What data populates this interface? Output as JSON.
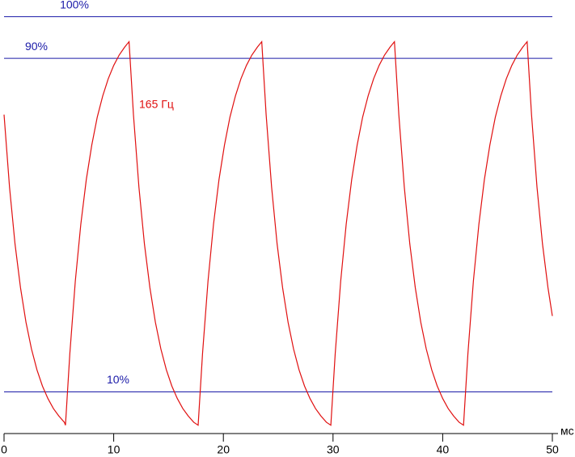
{
  "chart_data": {
    "type": "line",
    "annotation": "165 Гц",
    "xlabel": "мс",
    "xlim": [
      0,
      50
    ],
    "xticks": [
      0,
      10,
      20,
      30,
      40,
      50
    ],
    "ylim": [
      0,
      104
    ],
    "reference_lines": [
      {
        "value": 100,
        "label": "100%"
      },
      {
        "value": 90,
        "label": "90%"
      },
      {
        "value": 10,
        "label": "10%"
      }
    ],
    "reference_color": "#1a1aa8",
    "series": [
      {
        "name": "165 Гц",
        "color": "#e01010",
        "x": [
          0,
          0.5,
          1.0,
          1.5,
          2.0,
          2.5,
          3.0,
          3.5,
          4.0,
          4.5,
          5.0,
          5.5,
          5.6,
          6.0,
          6.5,
          7.0,
          7.5,
          8.0,
          8.5,
          9.0,
          9.5,
          10.0,
          10.5,
          11.0,
          11.4,
          11.8,
          12.3,
          12.8,
          13.3,
          13.8,
          14.3,
          14.8,
          15.3,
          15.8,
          16.3,
          16.8,
          17.3,
          17.7,
          18.1,
          18.6,
          19.1,
          19.6,
          20.1,
          20.6,
          21.1,
          21.6,
          22.1,
          22.6,
          23.1,
          23.5,
          23.9,
          24.4,
          24.9,
          25.4,
          25.9,
          26.4,
          26.9,
          27.4,
          27.9,
          28.4,
          28.9,
          29.4,
          29.8,
          30.2,
          30.7,
          31.2,
          31.7,
          32.2,
          32.7,
          33.2,
          33.7,
          34.2,
          34.7,
          35.2,
          35.6,
          36.0,
          36.5,
          37.0,
          37.5,
          38.0,
          38.5,
          39.0,
          39.5,
          40.0,
          40.5,
          41.0,
          41.5,
          41.9,
          42.3,
          42.8,
          43.3,
          43.8,
          44.3,
          44.8,
          45.3,
          45.8,
          46.3,
          46.8,
          47.3,
          47.7,
          48.1,
          48.6,
          49.1,
          49.6,
          50.0
        ],
        "values": [
          76.5,
          59.1,
          45.5,
          35.0,
          26.7,
          20.3,
          15.3,
          11.4,
          8.4,
          6.0,
          4.2,
          2.7,
          2,
          19.2,
          36.6,
          50.2,
          60.9,
          69.2,
          75.9,
          81.0,
          85.1,
          88.3,
          90.8,
          92.7,
          94,
          76.5,
          59.1,
          45.5,
          35.0,
          26.7,
          20.3,
          15.3,
          11.4,
          8.4,
          6.0,
          4.2,
          2.7,
          2,
          19.2,
          36.6,
          50.2,
          60.9,
          69.2,
          75.9,
          81.0,
          85.1,
          88.3,
          90.8,
          92.7,
          94,
          76.5,
          59.1,
          45.5,
          35.0,
          26.7,
          20.3,
          15.3,
          11.4,
          8.4,
          6.0,
          4.2,
          2.7,
          2,
          19.2,
          36.6,
          50.2,
          60.9,
          69.2,
          75.9,
          81.0,
          85.1,
          88.3,
          90.8,
          92.7,
          94,
          76.5,
          59.1,
          45.5,
          35.0,
          26.7,
          20.3,
          15.3,
          11.4,
          8.4,
          6.0,
          4.2,
          2.7,
          2,
          19.2,
          36.6,
          50.2,
          60.9,
          69.2,
          75.9,
          81.0,
          85.1,
          88.3,
          90.8,
          92.7,
          94,
          76.5,
          59.1,
          45.5,
          35.0,
          28.2
        ]
      }
    ]
  }
}
